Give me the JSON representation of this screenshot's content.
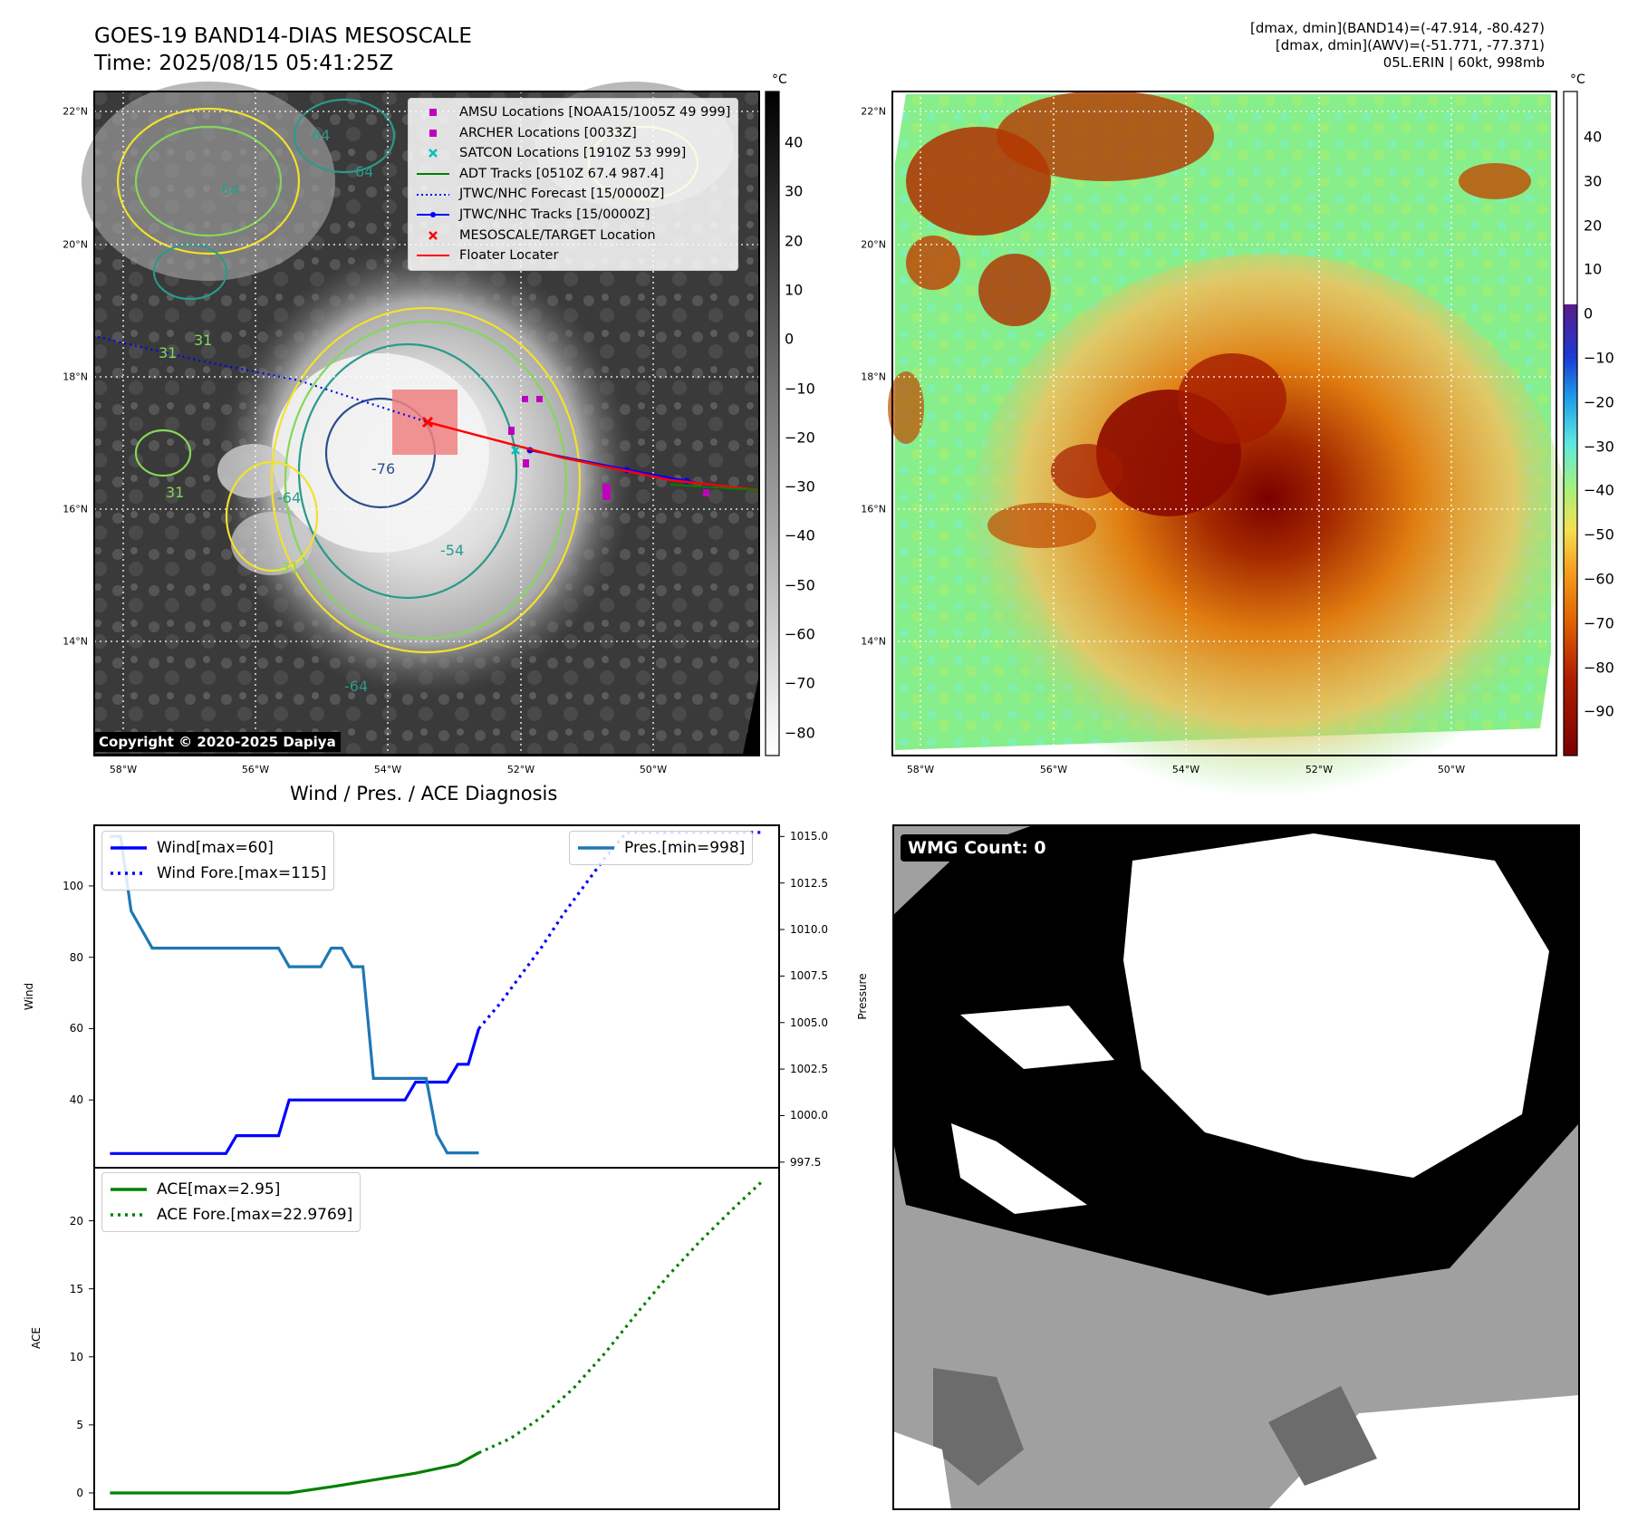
{
  "header": {
    "title_line1": "GOES-19 BAND14-DIAS MESOSCALE",
    "title_line2": "Time: 2025/08/15 05:41:25Z",
    "info_line1": "[dmax, dmin](BAND14)=(-47.914, -80.427)",
    "info_line2": "[dmax, dmin](AWV)=(-51.771, -77.371)",
    "info_line3": "05L.ERIN | 60kt, 998mb"
  },
  "map": {
    "lat_labels": [
      "22°N",
      "20°N",
      "18°N",
      "16°N",
      "14°N"
    ],
    "lon_labels": [
      "58°W",
      "56°W",
      "54°W",
      "52°W",
      "50°W"
    ],
    "copyright": "Copyright © 2020-2025 Dapiya",
    "contour_labels": [
      "64",
      "64",
      "64",
      "31",
      "31",
      "31",
      "-76",
      "-64",
      "-54",
      "-31",
      "-64"
    ],
    "legend": [
      {
        "label": "AMSU Locations [NOAA15/1005Z 49 999]",
        "marker": "square",
        "color": "#bf00bf"
      },
      {
        "label": "ARCHER Locations [0033Z]",
        "marker": "square",
        "color": "#bf00bf"
      },
      {
        "label": "SATCON Locations [1910Z 53 999]",
        "marker": "x",
        "color": "#00bfbf"
      },
      {
        "label": "ADT Tracks [0510Z 67.4 987.4]",
        "marker": "line",
        "color": "#008000"
      },
      {
        "label": "JTWC/NHC Forecast [15/0000Z]",
        "marker": "dotted",
        "color": "#0000ff"
      },
      {
        "label": "JTWC/NHC Tracks [15/0000Z]",
        "marker": "line-dot",
        "color": "#0000ff"
      },
      {
        "label": "MESOSCALE/TARGET Location",
        "marker": "x",
        "color": "#ff0000"
      },
      {
        "label": "Floater Locater",
        "marker": "line",
        "color": "#ff0000"
      }
    ],
    "colorbar_left": {
      "unit": "°C",
      "ticks": [
        "40",
        "30",
        "20",
        "10",
        "0",
        "−10",
        "−20",
        "−30",
        "−40",
        "−50",
        "−60",
        "−70",
        "−80"
      ]
    },
    "colorbar_right": {
      "unit": "°C",
      "ticks": [
        "40",
        "30",
        "20",
        "10",
        "0",
        "−10",
        "−20",
        "−30",
        "−40",
        "−50",
        "−60",
        "−70",
        "−80",
        "−90"
      ]
    }
  },
  "diag_title": "Wind / Pres. / ACE Diagnosis",
  "wmg_label": "WMG Count: 0",
  "chart_data": [
    {
      "type": "line",
      "title": "Wind / Pres. / ACE Diagnosis",
      "ylabel": "Wind",
      "y2label": "Pressure",
      "ylim": [
        21,
        117
      ],
      "y2lim": [
        997.2,
        1015.6
      ],
      "yticks": [
        "40",
        "60",
        "80",
        "100"
      ],
      "y2ticks": [
        "997.5",
        "1000.0",
        "1002.5",
        "1005.0",
        "1007.5",
        "1010.0",
        "1012.5",
        "1015.0"
      ],
      "x": [
        0,
        1,
        2,
        3,
        4,
        5,
        6,
        7,
        8,
        9,
        10,
        11,
        12,
        13,
        14,
        15,
        16,
        17,
        18,
        19,
        20,
        21,
        22,
        23,
        24,
        25,
        26,
        27,
        28,
        29,
        30,
        31,
        32,
        33,
        34,
        35,
        36,
        37,
        38,
        39,
        40,
        41,
        42,
        43,
        44,
        45,
        46,
        47,
        48,
        49,
        50,
        51,
        52,
        53,
        54,
        55,
        56,
        57,
        58,
        59,
        60,
        61,
        62
      ],
      "series": [
        {
          "name": "Wind[max=60]",
          "style": "solid",
          "color": "#0000ff",
          "x": [
            0,
            1,
            2,
            3,
            4,
            5,
            6,
            7,
            8,
            9,
            10,
            11,
            12,
            13,
            14,
            15,
            16,
            17,
            18,
            19,
            20,
            21,
            22,
            23,
            24,
            25,
            26,
            27,
            28,
            29,
            30,
            31,
            32,
            33,
            34,
            35
          ],
          "values": [
            25,
            25,
            25,
            25,
            25,
            25,
            25,
            25,
            25,
            25,
            25,
            25,
            30,
            30,
            30,
            30,
            30,
            40,
            40,
            40,
            40,
            40,
            40,
            40,
            40,
            40,
            40,
            40,
            40,
            45,
            45,
            45,
            45,
            50,
            50,
            60
          ]
        },
        {
          "name": "Wind Fore.[max=115]",
          "style": "dotted",
          "color": "#0000ff",
          "x": [
            35,
            37,
            39,
            41,
            43,
            45,
            47,
            49,
            51,
            53,
            55,
            57,
            59,
            61,
            62
          ],
          "values": [
            60,
            67,
            75,
            83,
            92,
            100,
            108,
            115,
            115,
            115,
            115,
            115,
            115,
            115,
            115
          ]
        },
        {
          "name": "Pres.[min=998]",
          "style": "solid",
          "color": "#1f77b4",
          "axis": "y2",
          "x": [
            0,
            1,
            2,
            3,
            4,
            5,
            6,
            7,
            8,
            9,
            10,
            11,
            12,
            13,
            14,
            15,
            16,
            17,
            18,
            19,
            20,
            21,
            22,
            23,
            24,
            25,
            26,
            27,
            28,
            29,
            30,
            31,
            32,
            33,
            34,
            35
          ],
          "values": [
            1015,
            1015,
            1011,
            1010,
            1009,
            1009,
            1009,
            1009,
            1009,
            1009,
            1009,
            1009,
            1009,
            1009,
            1009,
            1009,
            1009,
            1008,
            1008,
            1008,
            1008,
            1009,
            1009,
            1008,
            1008,
            1002,
            1002,
            1002,
            1002,
            1002,
            1002,
            999,
            998,
            998,
            998,
            998
          ]
        }
      ]
    },
    {
      "type": "line",
      "ylabel": "ACE",
      "ylim": [
        -1.2,
        23.9
      ],
      "yticks": [
        "0",
        "5",
        "10",
        "15",
        "20"
      ],
      "series": [
        {
          "name": "ACE[max=2.95]",
          "style": "solid",
          "color": "#008000",
          "x": [
            0,
            4,
            8,
            12,
            17,
            21,
            25,
            29,
            33,
            35
          ],
          "values": [
            0,
            0,
            0,
            0,
            0,
            0.45,
            0.95,
            1.45,
            2.1,
            2.95
          ]
        },
        {
          "name": "ACE Fore.[max=22.9769]",
          "style": "dotted",
          "color": "#008000",
          "x": [
            35,
            38,
            41,
            44,
            47,
            50,
            53,
            56,
            59,
            62
          ],
          "values": [
            2.95,
            4.0,
            5.6,
            7.7,
            10.3,
            13.2,
            16.0,
            18.5,
            20.8,
            22.98
          ]
        }
      ]
    }
  ]
}
